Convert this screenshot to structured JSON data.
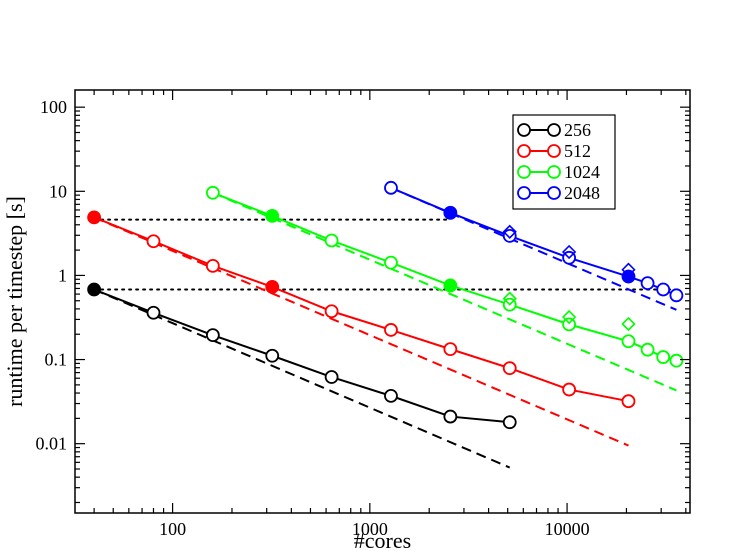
{
  "chart_data": {
    "type": "line",
    "xscale": "log",
    "yscale": "log",
    "xlim": [
      32,
      42000
    ],
    "ylim": [
      0.0015,
      160
    ],
    "xlabel": "#cores",
    "ylabel": "runtime per timestep [s]",
    "xticks": [
      {
        "value": 100,
        "label": "100"
      },
      {
        "value": 1000,
        "label": "1000"
      },
      {
        "value": 10000,
        "label": "10000"
      }
    ],
    "yticks": [
      {
        "value": 0.01,
        "label": "0.01"
      },
      {
        "value": 0.1,
        "label": "0.1"
      },
      {
        "value": 1,
        "label": "1"
      },
      {
        "value": 10,
        "label": "10"
      },
      {
        "value": 100,
        "label": "100"
      }
    ],
    "reference_lines": [
      {
        "y": 4.6,
        "x0": 40,
        "x1": 2560
      },
      {
        "y": 0.68,
        "x0": 40,
        "x1": 36000
      }
    ],
    "series": [
      {
        "name": "256",
        "color": "#000000",
        "x": [
          40,
          80,
          160,
          320,
          640,
          1280,
          2560,
          5120
        ],
        "y": [
          0.68,
          0.36,
          0.195,
          0.111,
          0.062,
          0.037,
          0.021,
          0.018
        ],
        "filled": [
          0
        ],
        "ideal": {
          "x": [
            40,
            5120
          ],
          "y": [
            0.68,
            0.0052
          ]
        },
        "diamonds": {
          "x": [],
          "y": []
        }
      },
      {
        "name": "512",
        "color": "#ff0000",
        "x": [
          40,
          80,
          160,
          320,
          640,
          1280,
          2560,
          5120,
          10240,
          20480
        ],
        "y": [
          4.9,
          2.55,
          1.3,
          0.73,
          0.375,
          0.225,
          0.133,
          0.079,
          0.044,
          0.032
        ],
        "filled": [
          0,
          3
        ],
        "ideal": {
          "x": [
            40,
            20480
          ],
          "y": [
            4.9,
            0.0095
          ]
        },
        "diamonds": {
          "x": [],
          "y": []
        }
      },
      {
        "name": "1024",
        "color": "#00ff00",
        "x": [
          160,
          320,
          640,
          1280,
          2560,
          5120,
          10240,
          20480,
          25600,
          30720,
          35840
        ],
        "y": [
          9.6,
          5.1,
          2.6,
          1.42,
          0.76,
          0.45,
          0.262,
          0.165,
          0.131,
          0.107,
          0.097
        ],
        "filled": [
          1,
          4
        ],
        "ideal": {
          "x": [
            160,
            35840
          ],
          "y": [
            9.6,
            0.043
          ]
        },
        "diamonds": {
          "x": [
            5120,
            10240,
            20480
          ],
          "y": [
            0.53,
            0.32,
            0.265
          ]
        }
      },
      {
        "name": "2048",
        "color": "#0000ff",
        "x": [
          1280,
          2560,
          5120,
          10240,
          20480,
          25600,
          30720,
          35840
        ],
        "y": [
          11,
          5.55,
          2.95,
          1.62,
          0.97,
          0.81,
          0.68,
          0.58
        ],
        "filled": [
          1,
          4
        ],
        "ideal": {
          "x": [
            1280,
            35840
          ],
          "y": [
            11,
            0.39
          ]
        },
        "diamonds": {
          "x": [
            5120,
            10240,
            20480
          ],
          "y": [
            3.3,
            1.9,
            1.17
          ]
        }
      }
    ],
    "legend": {
      "position": "top-right",
      "entries": [
        "256",
        "512",
        "1024",
        "2048"
      ]
    }
  }
}
